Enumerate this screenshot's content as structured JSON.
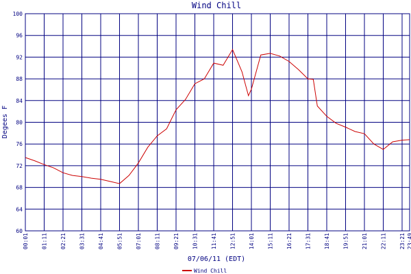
{
  "chart_data": {
    "type": "line",
    "title": "Wind Chill",
    "xlabel": "07/06/11 (EDT)",
    "ylabel": "Degees F",
    "x": [
      "00:01",
      "00:36",
      "01:11",
      "01:46",
      "02:21",
      "02:56",
      "03:31",
      "04:06",
      "04:41",
      "05:16",
      "05:51",
      "06:26",
      "07:01",
      "07:36",
      "08:11",
      "08:46",
      "09:21",
      "09:56",
      "10:31",
      "11:06",
      "11:41",
      "12:16",
      "12:51",
      "13:26",
      "13:50",
      "14:01",
      "14:36",
      "15:11",
      "15:46",
      "16:21",
      "16:56",
      "17:31",
      "17:51",
      "18:06",
      "18:41",
      "19:16",
      "19:51",
      "20:26",
      "21:01",
      "21:36",
      "22:11",
      "22:46",
      "23:21",
      "23:49"
    ],
    "series": [
      {
        "name": "Wind Chill",
        "color": "#cc0000",
        "values": [
          73.5,
          72.9,
          72.2,
          71.6,
          70.7,
          70.2,
          70.0,
          69.7,
          69.5,
          69.1,
          68.7,
          70.2,
          72.5,
          75.4,
          77.5,
          78.8,
          82.3,
          84.2,
          87.1,
          88.0,
          90.9,
          90.5,
          93.4,
          89.3,
          84.9,
          86.1,
          92.4,
          92.7,
          92.2,
          91.2,
          89.7,
          88.0,
          87.9,
          83.0,
          81.1,
          79.8,
          79.1,
          78.3,
          77.9,
          76.0,
          75.0,
          76.4,
          76.7,
          76.8
        ]
      }
    ],
    "xlim": [
      "00:01",
      "23:49"
    ],
    "xticks": [
      "00:01",
      "01:11",
      "02:21",
      "03:31",
      "04:41",
      "05:51",
      "07:01",
      "08:11",
      "09:21",
      "10:31",
      "11:41",
      "12:51",
      "14:01",
      "15:11",
      "16:21",
      "17:31",
      "18:41",
      "19:51",
      "21:01",
      "22:11",
      "23:21",
      "23:49"
    ],
    "ylim": [
      60,
      100
    ],
    "yticks": [
      60,
      64,
      68,
      72,
      76,
      80,
      84,
      88,
      92,
      96,
      100
    ],
    "grid": true
  }
}
